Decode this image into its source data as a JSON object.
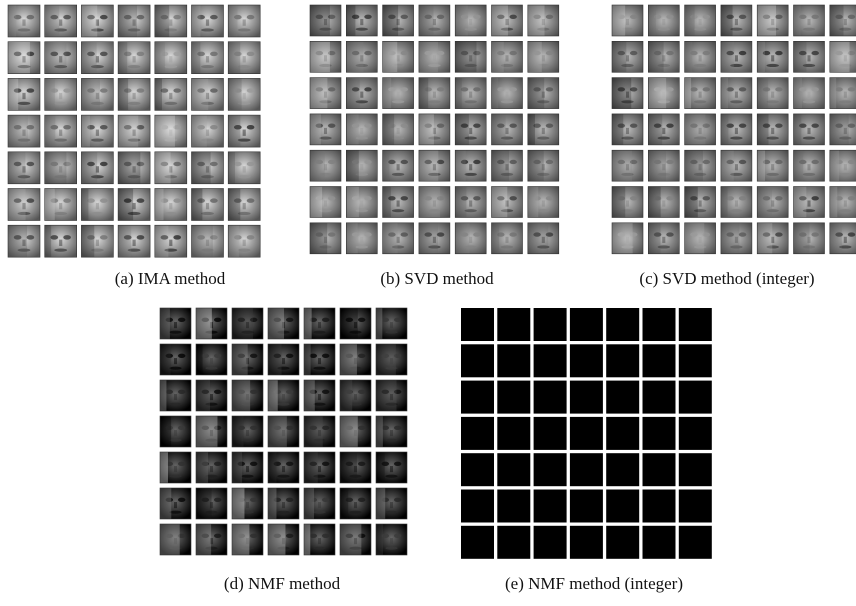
{
  "figure": {
    "panels": [
      {
        "caption": "(a) IMA method"
      },
      {
        "caption": "(b) SVD method"
      },
      {
        "caption": "(c) SVD method (integer)"
      },
      {
        "caption": "(d) NMF method"
      },
      {
        "caption": "(e) NMF method (integer)"
      }
    ]
  }
}
